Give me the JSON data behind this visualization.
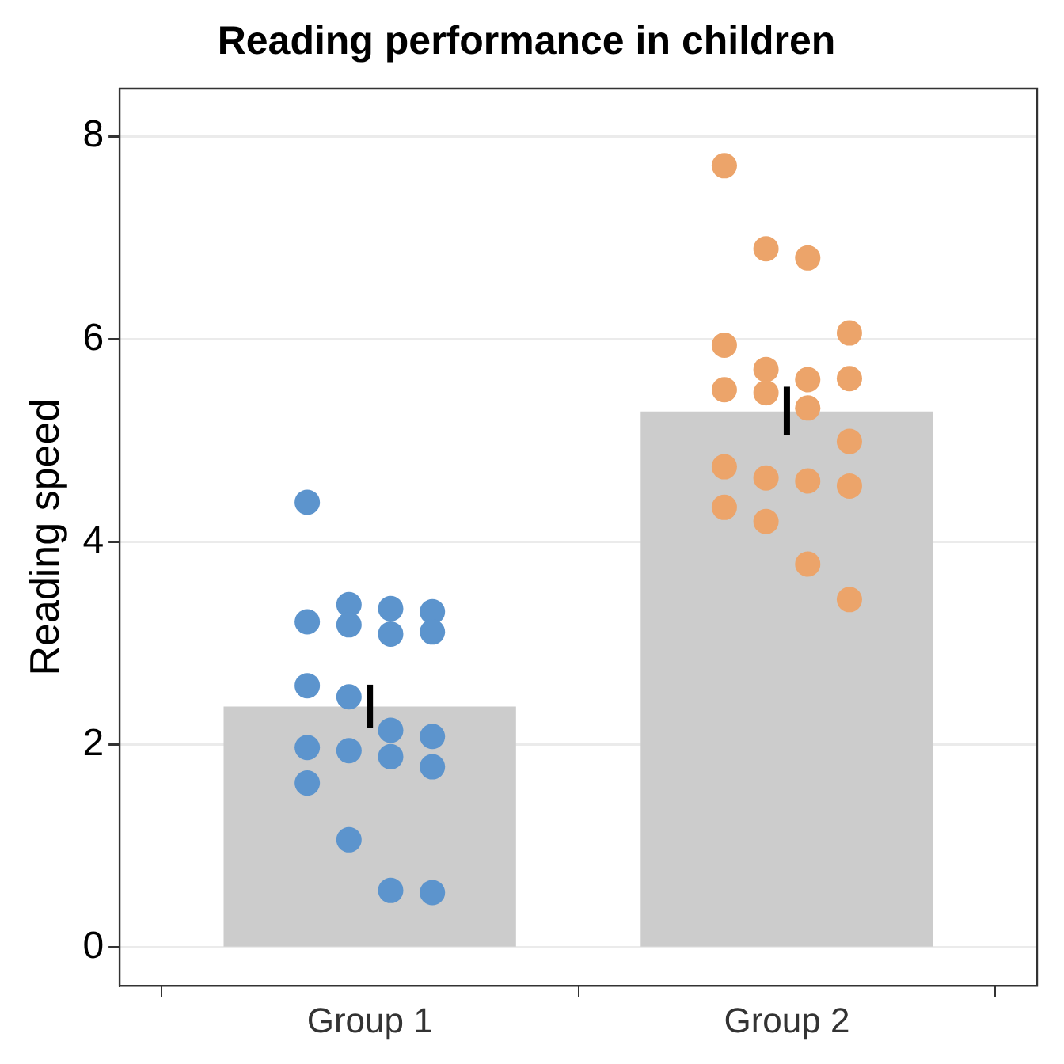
{
  "chart_data": {
    "type": "bar",
    "title": "Reading performance in children",
    "ylabel": "Reading speed",
    "categories": [
      "Group 1",
      "Group 2"
    ],
    "series": [
      {
        "color": "#cccccc",
        "values": [
          2.37,
          5.28
        ],
        "errors": [
          [
            2.16,
            2.59
          ],
          [
            5.05,
            5.53
          ]
        ]
      },
      {
        "type": "scatter",
        "color": "#5c94cd",
        "x": [
          "Group 1",
          "Group 1",
          "Group 1",
          "Group 1",
          "Group 1",
          "Group 1",
          "Group 1",
          "Group 1",
          "Group 1",
          "Group 1",
          "Group 1",
          "Group 1",
          "Group 1",
          "Group 1",
          "Group 1",
          "Group 1",
          "Group 1",
          "Group 1",
          "Group 1",
          "Group 1"
        ],
        "values": [
          4.39,
          3.38,
          3.34,
          3.31,
          3.21,
          3.18,
          3.09,
          3.11,
          2.58,
          2.47,
          2.14,
          2.08,
          1.97,
          1.94,
          1.88,
          1.78,
          1.62,
          1.06,
          0.56,
          0.54
        ]
      },
      {
        "type": "scatter",
        "color": "#eca46a",
        "x": [
          "Group 2",
          "Group 2",
          "Group 2",
          "Group 2",
          "Group 2",
          "Group 2",
          "Group 2",
          "Group 2",
          "Group 2",
          "Group 2",
          "Group 2",
          "Group 2",
          "Group 2",
          "Group 2",
          "Group 2",
          "Group 2",
          "Group 2",
          "Group 2",
          "Group 2",
          "Group 2"
        ],
        "values": [
          7.71,
          6.89,
          6.8,
          6.06,
          5.94,
          5.7,
          5.6,
          5.61,
          5.5,
          5.47,
          5.32,
          4.99,
          4.74,
          4.63,
          4.6,
          4.55,
          4.34,
          4.2,
          3.78,
          3.43
        ]
      }
    ],
    "ylim": [
      -0.38,
      8.47
    ],
    "yticks": [
      0,
      2,
      4,
      6,
      8
    ],
    "grid": "y",
    "marker": "circle",
    "legend": false
  }
}
